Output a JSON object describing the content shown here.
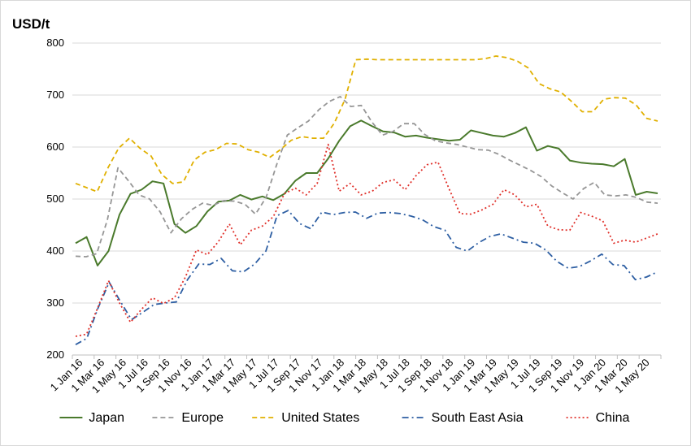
{
  "chart_data": {
    "type": "line",
    "title": "",
    "xlabel": "",
    "ylabel": "USD/t",
    "ylim": [
      200,
      800
    ],
    "yticks": [
      200,
      300,
      400,
      500,
      600,
      700,
      800
    ],
    "grid": "horizontal",
    "legend_position": "bottom",
    "x_tick_labels": [
      "1 Jan 16",
      "1 Mar 16",
      "1 May 16",
      "1 Jul 16",
      "1 Sep 16",
      "1 Nov 16",
      "1 Jan 17",
      "1 Mar 17",
      "1 May 17",
      "1 Jul 17",
      "1 Sep 17",
      "1 Nov 17",
      "1 Jan 18",
      "1 Mar 18",
      "1 May 18",
      "1 Jul 18",
      "1 Sep 18",
      "1 Nov 18",
      "1 Jan 19",
      "1 Mar 19",
      "1 May 19",
      "1 Jul 19",
      "1 Sep 19",
      "1 Nov 19",
      "1 Jan 20",
      "1 Mar 20",
      "1 May 20"
    ],
    "series": [
      {
        "name": "Japan",
        "color": "#4a7a2c",
        "dash": "solid",
        "values": [
          415,
          427,
          372,
          400,
          470,
          510,
          518,
          534,
          530,
          452,
          435,
          448,
          476,
          495,
          497,
          508,
          499,
          505,
          498,
          510,
          535,
          550,
          550,
          578,
          612,
          640,
          651,
          640,
          630,
          628,
          620,
          622,
          618,
          615,
          612,
          614,
          632,
          627,
          622,
          620,
          627,
          638,
          593,
          602,
          597,
          574,
          570,
          568,
          567,
          563,
          577,
          508,
          514,
          511
        ]
      },
      {
        "name": "Europe",
        "color": "#969696",
        "dash": "dashed",
        "values": [
          390,
          389,
          395,
          460,
          560,
          535,
          508,
          500,
          475,
          435,
          462,
          480,
          492,
          488,
          497,
          496,
          490,
          471,
          503,
          566,
          623,
          637,
          650,
          672,
          688,
          697,
          678,
          680,
          648,
          623,
          630,
          645,
          645,
          624,
          612,
          608,
          605,
          600,
          595,
          594,
          586,
          575,
          565,
          555,
          543,
          525,
          512,
          500,
          520,
          532,
          508,
          506,
          508,
          503,
          494,
          492
        ]
      },
      {
        "name": "United States",
        "color": "#e0b000",
        "dash": "dashed",
        "values": [
          530,
          522,
          514,
          560,
          598,
          617,
          597,
          583,
          547,
          530,
          533,
          575,
          590,
          595,
          607,
          606,
          595,
          590,
          580,
          595,
          613,
          620,
          617,
          617,
          646,
          692,
          768,
          769,
          768,
          768,
          768,
          768,
          768,
          768,
          768,
          768,
          768,
          768,
          770,
          775,
          772,
          765,
          752,
          722,
          712,
          706,
          688,
          668,
          668,
          692,
          695,
          694,
          681,
          655,
          650
        ]
      },
      {
        "name": "South East Asia",
        "color": "#2e5fa3",
        "dash": "dashdot",
        "values": [
          220,
          232,
          290,
          340,
          303,
          268,
          282,
          297,
          300,
          302,
          345,
          375,
          374,
          386,
          362,
          360,
          375,
          400,
          468,
          478,
          453,
          443,
          475,
          470,
          474,
          475,
          463,
          473,
          474,
          472,
          467,
          460,
          447,
          440,
          407,
          400,
          416,
          428,
          433,
          425,
          417,
          415,
          402,
          380,
          367,
          370,
          381,
          394,
          374,
          372,
          345,
          350,
          360
        ]
      },
      {
        "name": "China",
        "color": "#e0302a",
        "dash": "dotted",
        "values": [
          236,
          240,
          290,
          343,
          300,
          263,
          288,
          310,
          299,
          310,
          350,
          402,
          393,
          418,
          452,
          412,
          440,
          448,
          466,
          510,
          521,
          508,
          530,
          605,
          515,
          530,
          508,
          515,
          532,
          537,
          518,
          545,
          566,
          571,
          520,
          472,
          471,
          479,
          490,
          518,
          508,
          485,
          490,
          448,
          441,
          440,
          474,
          467,
          458,
          415,
          421,
          417,
          425,
          433
        ]
      }
    ]
  }
}
